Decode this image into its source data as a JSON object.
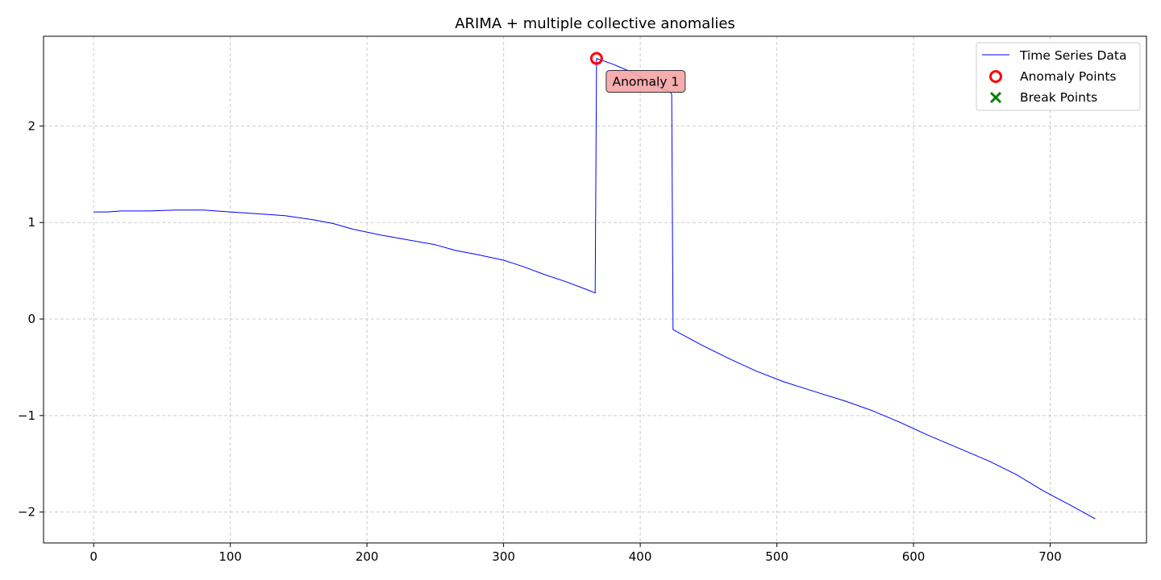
{
  "chart_data": {
    "type": "line",
    "title": "ARIMA + multiple collective anomalies",
    "xlabel": "",
    "ylabel": "",
    "xlim": [
      -36.7,
      770.5
    ],
    "ylim": [
      -2.32,
      2.93
    ],
    "xticks": [
      0,
      100,
      200,
      300,
      400,
      500,
      600,
      700
    ],
    "yticks": [
      -2,
      -1,
      0,
      1,
      2
    ],
    "ytick_labels": [
      "−2",
      "−1",
      "0",
      "1",
      "2"
    ],
    "grid": true,
    "legend_position": "top-right",
    "series": [
      {
        "name": "Time Series Data",
        "color": "#0000ff",
        "points": [
          [
            0,
            1.11
          ],
          [
            10,
            1.11
          ],
          [
            20,
            1.12
          ],
          [
            40,
            1.12
          ],
          [
            60,
            1.13
          ],
          [
            80,
            1.13
          ],
          [
            100,
            1.11
          ],
          [
            120,
            1.09
          ],
          [
            140,
            1.07
          ],
          [
            160,
            1.03
          ],
          [
            175,
            0.99
          ],
          [
            190,
            0.93
          ],
          [
            210,
            0.87
          ],
          [
            230,
            0.82
          ],
          [
            250,
            0.77
          ],
          [
            265,
            0.71
          ],
          [
            280,
            0.67
          ],
          [
            300,
            0.61
          ],
          [
            315,
            0.54
          ],
          [
            330,
            0.46
          ],
          [
            345,
            0.39
          ],
          [
            360,
            0.31
          ],
          [
            367,
            0.27
          ],
          [
            368,
            2.7
          ],
          [
            380,
            2.64
          ],
          [
            395,
            2.55
          ],
          [
            410,
            2.43
          ],
          [
            422,
            2.35
          ],
          [
            423,
            2.33
          ],
          [
            424,
            -0.11
          ],
          [
            445,
            -0.27
          ],
          [
            465,
            -0.41
          ],
          [
            485,
            -0.54
          ],
          [
            505,
            -0.65
          ],
          [
            525,
            -0.74
          ],
          [
            550,
            -0.85
          ],
          [
            570,
            -0.95
          ],
          [
            590,
            -1.07
          ],
          [
            610,
            -1.2
          ],
          [
            630,
            -1.32
          ],
          [
            655,
            -1.47
          ],
          [
            675,
            -1.61
          ],
          [
            695,
            -1.78
          ],
          [
            715,
            -1.93
          ],
          [
            733,
            -2.07
          ]
        ]
      }
    ],
    "anomaly_points": {
      "name": "Anomaly Points",
      "color": "#ff0000",
      "points": [
        [
          368,
          2.7
        ]
      ]
    },
    "break_points": {
      "name": "Break Points",
      "color": "#008000",
      "points": []
    },
    "annotations": [
      {
        "text": "Anomaly 1",
        "x": 368,
        "y": 2.7,
        "bg": "#f4a4a4"
      }
    ]
  }
}
